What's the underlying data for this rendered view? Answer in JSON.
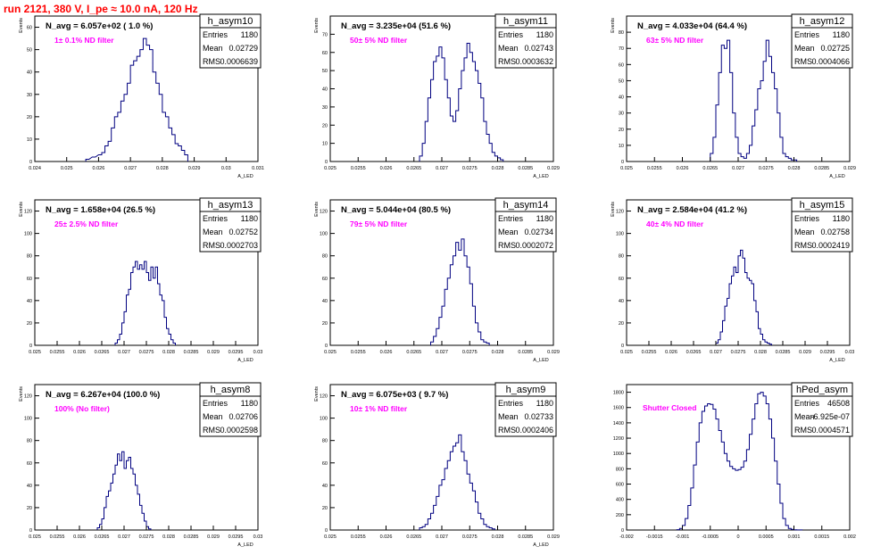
{
  "run_title": "run 2121,   380 V, I_pe ≈ 10.0 nA, 120 Hz",
  "colors": {
    "hist": "#000080",
    "title": "#ff0000",
    "note": "#ff00ff",
    "frame": "#000000"
  },
  "chart_data": [
    {
      "type": "bar",
      "hist_name": "h_asym10",
      "stats": [
        [
          "Entries",
          "1180"
        ],
        [
          "Mean",
          "0.02729"
        ],
        [
          "RMS",
          "0.0006639"
        ]
      ],
      "navg": "N_avg = 6.057e+02 ( 1.0 %)",
      "note": "1± 0.1% ND filter",
      "ylabel": "Events",
      "xlabel": "A_LED",
      "xlim": [
        0.024,
        0.031
      ],
      "ylim": [
        0,
        65
      ],
      "yticks": [
        0,
        10,
        20,
        30,
        40,
        50,
        60
      ],
      "xticks": [
        0.024,
        0.025,
        0.026,
        0.027,
        0.028,
        0.029,
        0.03,
        0.031
      ],
      "xtick_labels": [
        "0.024",
        "0.025",
        "0.026",
        "0.027",
        "0.028",
        "0.029",
        "0.03",
        "0.031"
      ],
      "binw": 0.0001,
      "x": [
        0.0256,
        0.0258,
        0.026,
        0.0261,
        0.0262,
        0.0263,
        0.0264,
        0.0265,
        0.0266,
        0.0267,
        0.0268,
        0.0269,
        0.027,
        0.0271,
        0.0272,
        0.0273,
        0.0274,
        0.0275,
        0.0276,
        0.0277,
        0.0278,
        0.0279,
        0.028,
        0.0281,
        0.0282,
        0.0283,
        0.0284,
        0.0285,
        0.0286,
        0.0287
      ],
      "values": [
        1,
        2,
        3,
        4,
        7,
        9,
        15,
        20,
        22,
        27,
        30,
        35,
        43,
        45,
        47,
        50,
        55,
        52,
        50,
        40,
        35,
        30,
        22,
        20,
        15,
        12,
        8,
        7,
        5,
        3
      ]
    },
    {
      "type": "bar",
      "hist_name": "h_asym11",
      "stats": [
        [
          "Entries",
          "1180"
        ],
        [
          "Mean",
          "0.02743"
        ],
        [
          "RMS",
          "0.0003632"
        ]
      ],
      "navg": "N_avg = 3.235e+04 (51.6 %)",
      "note": "50± 5% ND filter",
      "ylabel": "Events",
      "xlabel": "A_LED",
      "xlim": [
        0.025,
        0.029
      ],
      "ylim": [
        0,
        80
      ],
      "yticks": [
        0,
        10,
        20,
        30,
        40,
        50,
        60,
        70
      ],
      "xticks": [
        0.025,
        0.0255,
        0.026,
        0.0265,
        0.027,
        0.0275,
        0.028,
        0.0285,
        0.029
      ],
      "xtick_labels": [
        "0.025",
        "0.0255",
        "0.026",
        "0.0265",
        "0.027",
        "0.0275",
        "0.028",
        "0.0285",
        "0.029"
      ],
      "binw": 5e-05,
      "x": [
        0.0266,
        0.02665,
        0.0267,
        0.02675,
        0.0268,
        0.02685,
        0.0269,
        0.02695,
        0.027,
        0.02705,
        0.0271,
        0.02715,
        0.0272,
        0.02725,
        0.0273,
        0.02735,
        0.0274,
        0.02745,
        0.0275,
        0.02755,
        0.0276,
        0.02765,
        0.0277,
        0.02775,
        0.0278,
        0.02785,
        0.0279,
        0.02795,
        0.028,
        0.02805
      ],
      "values": [
        3,
        10,
        22,
        35,
        45,
        55,
        58,
        63,
        57,
        45,
        35,
        25,
        22,
        28,
        40,
        50,
        57,
        65,
        60,
        55,
        50,
        43,
        35,
        22,
        15,
        10,
        5,
        3,
        2,
        1
      ]
    },
    {
      "type": "bar",
      "hist_name": "h_asym12",
      "stats": [
        [
          "Entries",
          "1180"
        ],
        [
          "Mean",
          "0.02725"
        ],
        [
          "RMS",
          "0.0004066"
        ]
      ],
      "navg": "N_avg = 4.033e+04 (64.4 %)",
      "note": "63± 5% ND filter",
      "ylabel": "Events",
      "xlabel": "A_LED",
      "xlim": [
        0.025,
        0.029
      ],
      "ylim": [
        0,
        90
      ],
      "yticks": [
        0,
        10,
        20,
        30,
        40,
        50,
        60,
        70,
        80
      ],
      "xticks": [
        0.025,
        0.0255,
        0.026,
        0.0265,
        0.027,
        0.0275,
        0.028,
        0.0285,
        0.029
      ],
      "xtick_labels": [
        "0.025",
        "0.0255",
        "0.026",
        "0.0265",
        "0.027",
        "0.0275",
        "0.028",
        "0.0285",
        "0.029"
      ],
      "binw": 5e-05,
      "x": [
        0.0265,
        0.02655,
        0.0266,
        0.02665,
        0.0267,
        0.02675,
        0.0268,
        0.02685,
        0.0269,
        0.02695,
        0.027,
        0.02705,
        0.0271,
        0.02715,
        0.0272,
        0.02725,
        0.0273,
        0.02735,
        0.0274,
        0.02745,
        0.0275,
        0.02755,
        0.0276,
        0.02765,
        0.0277,
        0.02775,
        0.0278,
        0.02785,
        0.0279,
        0.02795,
        0.028
      ],
      "values": [
        5,
        15,
        35,
        55,
        72,
        70,
        75,
        55,
        30,
        15,
        5,
        3,
        2,
        5,
        10,
        22,
        32,
        45,
        50,
        62,
        75,
        65,
        55,
        45,
        30,
        15,
        5,
        3,
        2,
        1,
        1
      ]
    },
    {
      "type": "bar",
      "hist_name": "h_asym13",
      "stats": [
        [
          "Entries",
          "1180"
        ],
        [
          "Mean",
          "0.02752"
        ],
        [
          "RMS",
          "0.0002703"
        ]
      ],
      "navg": "N_avg = 1.658e+04 (26.5 %)",
      "note": "25± 2.5% ND filter",
      "ylabel": "Events",
      "xlabel": "A_LED",
      "xlim": [
        0.025,
        0.03
      ],
      "ylim": [
        0,
        130
      ],
      "yticks": [
        0,
        20,
        40,
        60,
        80,
        100,
        120
      ],
      "xticks": [
        0.025,
        0.0255,
        0.026,
        0.0265,
        0.027,
        0.0275,
        0.028,
        0.0285,
        0.029,
        0.0295,
        0.03
      ],
      "xtick_labels": [
        "0.025",
        "0.0255",
        "0.026",
        "0.0265",
        "0.027",
        "0.0275",
        "0.028",
        "0.0285",
        "0.029",
        "0.0295",
        "0.03"
      ],
      "binw": 5e-05,
      "x": [
        0.0268,
        0.02685,
        0.0269,
        0.02695,
        0.027,
        0.02705,
        0.0271,
        0.02715,
        0.0272,
        0.02725,
        0.0273,
        0.02735,
        0.0274,
        0.02745,
        0.0275,
        0.02755,
        0.0276,
        0.02765,
        0.0277,
        0.02775,
        0.0278,
        0.02785,
        0.0279,
        0.02795,
        0.028,
        0.02805,
        0.0281
      ],
      "values": [
        2,
        5,
        10,
        20,
        30,
        45,
        50,
        65,
        70,
        75,
        68,
        72,
        68,
        75,
        65,
        58,
        70,
        60,
        70,
        55,
        45,
        40,
        25,
        15,
        10,
        5,
        2
      ]
    },
    {
      "type": "bar",
      "hist_name": "h_asym14",
      "stats": [
        [
          "Entries",
          "1180"
        ],
        [
          "Mean",
          "0.02734"
        ],
        [
          "RMS",
          "0.0002072"
        ]
      ],
      "navg": "N_avg = 5.044e+04 (80.5 %)",
      "note": "79± 5% ND filter",
      "ylabel": "Events",
      "xlabel": "A_LED",
      "xlim": [
        0.025,
        0.029
      ],
      "ylim": [
        0,
        130
      ],
      "yticks": [
        0,
        20,
        40,
        60,
        80,
        100,
        120
      ],
      "xticks": [
        0.025,
        0.0255,
        0.026,
        0.0265,
        0.027,
        0.0275,
        0.028,
        0.0285,
        0.029
      ],
      "xtick_labels": [
        "0.025",
        "0.0255",
        "0.026",
        "0.0265",
        "0.027",
        "0.0275",
        "0.028",
        "0.0285",
        "0.029"
      ],
      "binw": 5e-05,
      "x": [
        0.0268,
        0.02685,
        0.0269,
        0.02695,
        0.027,
        0.02705,
        0.0271,
        0.02715,
        0.0272,
        0.02725,
        0.0273,
        0.02735,
        0.0274,
        0.02745,
        0.0275,
        0.02755,
        0.0276,
        0.02765,
        0.0277,
        0.02775,
        0.0278
      ],
      "values": [
        3,
        8,
        15,
        25,
        35,
        50,
        60,
        72,
        80,
        92,
        85,
        95,
        80,
        70,
        55,
        35,
        20,
        12,
        5,
        3,
        2
      ]
    },
    {
      "type": "bar",
      "hist_name": "h_asym15",
      "stats": [
        [
          "Entries",
          "1180"
        ],
        [
          "Mean",
          "0.02758"
        ],
        [
          "RMS",
          "0.0002419"
        ]
      ],
      "navg": "N_avg = 2.584e+04 (41.2 %)",
      "note": "40± 4% ND filter",
      "ylabel": "Events",
      "xlabel": "A_LED",
      "xlim": [
        0.025,
        0.03
      ],
      "ylim": [
        0,
        130
      ],
      "yticks": [
        0,
        20,
        40,
        60,
        80,
        100,
        120
      ],
      "xticks": [
        0.025,
        0.0255,
        0.026,
        0.0265,
        0.027,
        0.0275,
        0.028,
        0.0285,
        0.029,
        0.0295,
        0.03
      ],
      "xtick_labels": [
        "0.025",
        "0.0255",
        "0.026",
        "0.0265",
        "0.027",
        "0.0275",
        "0.028",
        "0.0285",
        "0.029",
        "0.0295",
        "0.03"
      ],
      "binw": 5e-05,
      "x": [
        0.027,
        0.02705,
        0.0271,
        0.02715,
        0.0272,
        0.02725,
        0.0273,
        0.02735,
        0.0274,
        0.02745,
        0.0275,
        0.02755,
        0.0276,
        0.02765,
        0.0277,
        0.02775,
        0.0278,
        0.02785,
        0.0279,
        0.02795,
        0.028,
        0.02805,
        0.0281,
        0.02815,
        0.0282
      ],
      "values": [
        2,
        5,
        12,
        22,
        35,
        42,
        55,
        62,
        70,
        65,
        80,
        85,
        78,
        65,
        60,
        58,
        55,
        40,
        30,
        15,
        10,
        5,
        3,
        2,
        1
      ]
    },
    {
      "type": "bar",
      "hist_name": "h_asym8",
      "stats": [
        [
          "Entries",
          "1180"
        ],
        [
          "Mean",
          "0.02706"
        ],
        [
          "RMS",
          "0.0002598"
        ]
      ],
      "navg": "N_avg = 6.267e+04 (100.0 %)",
      "note": "100% (No filter)",
      "ylabel": "Events",
      "xlabel": "A_LED",
      "xlim": [
        0.025,
        0.03
      ],
      "ylim": [
        0,
        130
      ],
      "yticks": [
        0,
        20,
        40,
        60,
        80,
        100,
        120
      ],
      "xticks": [
        0.025,
        0.0255,
        0.026,
        0.0265,
        0.027,
        0.0275,
        0.028,
        0.0285,
        0.029,
        0.0295,
        0.03
      ],
      "xtick_labels": [
        "0.025",
        "0.0255",
        "0.026",
        "0.0265",
        "0.027",
        "0.0275",
        "0.028",
        "0.0285",
        "0.029",
        "0.0295",
        "0.03"
      ],
      "binw": 5e-05,
      "x": [
        0.0264,
        0.02645,
        0.0265,
        0.02655,
        0.0266,
        0.02665,
        0.0267,
        0.02675,
        0.0268,
        0.02685,
        0.0269,
        0.02695,
        0.027,
        0.02705,
        0.0271,
        0.02715,
        0.0272,
        0.02725,
        0.0273,
        0.02735,
        0.0274,
        0.02745,
        0.0275,
        0.02755
      ],
      "values": [
        2,
        5,
        10,
        20,
        30,
        35,
        42,
        50,
        58,
        68,
        62,
        70,
        55,
        62,
        65,
        55,
        50,
        40,
        32,
        22,
        15,
        8,
        3,
        1
      ]
    },
    {
      "type": "bar",
      "hist_name": "h_asym9",
      "stats": [
        [
          "Entries",
          "1180"
        ],
        [
          "Mean",
          "0.02733"
        ],
        [
          "RMS",
          "0.0002406"
        ]
      ],
      "navg": "N_avg = 6.075e+03 ( 9.7 %)",
      "note": "10± 1% ND filter",
      "ylabel": "Events",
      "xlabel": "A_LED",
      "xlim": [
        0.025,
        0.029
      ],
      "ylim": [
        0,
        130
      ],
      "yticks": [
        0,
        20,
        40,
        60,
        80,
        100,
        120
      ],
      "xticks": [
        0.025,
        0.0255,
        0.026,
        0.0265,
        0.027,
        0.0275,
        0.028,
        0.0285,
        0.029
      ],
      "xtick_labels": [
        "0.025",
        "0.0255",
        "0.026",
        "0.0265",
        "0.027",
        "0.0275",
        "0.028",
        "0.0285",
        "0.029"
      ],
      "binw": 5e-05,
      "x": [
        0.0266,
        0.02665,
        0.0267,
        0.02675,
        0.0268,
        0.02685,
        0.0269,
        0.02695,
        0.027,
        0.02705,
        0.0271,
        0.02715,
        0.0272,
        0.02725,
        0.0273,
        0.02735,
        0.0274,
        0.02745,
        0.0275,
        0.02755,
        0.0276,
        0.02765,
        0.0277,
        0.02775,
        0.0278,
        0.02785,
        0.0279
      ],
      "values": [
        2,
        3,
        5,
        10,
        15,
        22,
        30,
        40,
        45,
        55,
        62,
        70,
        75,
        78,
        85,
        70,
        62,
        50,
        42,
        35,
        25,
        15,
        10,
        5,
        3,
        2,
        1
      ]
    },
    {
      "type": "bar",
      "hist_name": "hPed_asym",
      "stats": [
        [
          "Entries",
          "46508"
        ],
        [
          "Mean",
          "-6.925e-07"
        ],
        [
          "RMS",
          "0.0004571"
        ]
      ],
      "navg": "",
      "note": "Shutter Closed",
      "ylabel": "",
      "xlabel": "",
      "xlim": [
        -0.002,
        0.002
      ],
      "ylim": [
        0,
        1900
      ],
      "yticks": [
        0,
        200,
        400,
        600,
        800,
        1000,
        1200,
        1400,
        1600,
        1800
      ],
      "xticks": [
        -0.002,
        -0.0015,
        -0.001,
        -0.0005,
        0,
        0.0005,
        0.001,
        0.0015,
        0.002
      ],
      "xtick_labels": [
        "-0.002",
        "-0.0015",
        "-0.001",
        "-0.0005",
        "0",
        "0.0005",
        "0.001",
        "0.0015",
        "0.002"
      ],
      "binw": 5e-05,
      "x": [
        -0.0011,
        -0.00105,
        -0.001,
        -0.00095,
        -0.0009,
        -0.00085,
        -0.0008,
        -0.00075,
        -0.0007,
        -0.00065,
        -0.0006,
        -0.00055,
        -0.0005,
        -0.00045,
        -0.0004,
        -0.00035,
        -0.0003,
        -0.00025,
        -0.0002,
        -0.00015,
        -0.0001,
        -5e-05,
        0,
        5e-05,
        0.0001,
        0.00015,
        0.0002,
        0.00025,
        0.0003,
        0.00035,
        0.0004,
        0.00045,
        0.0005,
        0.00055,
        0.0006,
        0.00065,
        0.0007,
        0.00075,
        0.0008,
        0.00085,
        0.0009,
        0.00095,
        0.001,
        0.00105,
        0.0011
      ],
      "values": [
        5,
        20,
        60,
        150,
        320,
        550,
        850,
        1150,
        1400,
        1550,
        1620,
        1650,
        1640,
        1580,
        1450,
        1300,
        1150,
        1000,
        900,
        830,
        800,
        780,
        790,
        820,
        900,
        1050,
        1250,
        1450,
        1650,
        1780,
        1800,
        1750,
        1650,
        1450,
        1200,
        900,
        600,
        350,
        150,
        60,
        20,
        8,
        3,
        1,
        1
      ]
    }
  ]
}
